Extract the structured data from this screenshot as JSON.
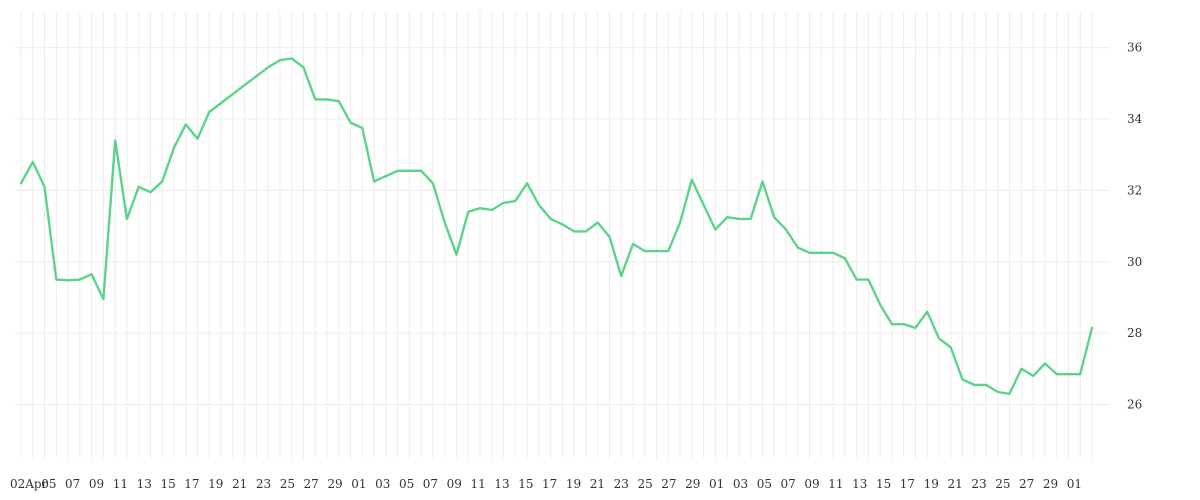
{
  "colors": {
    "line": "#5dd38a",
    "grid": "#ececec",
    "text": "#333333"
  },
  "chart_data": {
    "type": "line",
    "title": "",
    "xlabel": "",
    "ylabel": "",
    "ylim": [
      24.5,
      37
    ],
    "grid": true,
    "y_ticks": [
      26,
      28,
      30,
      32,
      34,
      36
    ],
    "x_tick_labels": [
      "02Apr",
      "05",
      "07",
      "09",
      "11",
      "13",
      "15",
      "17",
      "19",
      "21",
      "23",
      "25",
      "27",
      "29",
      "01",
      "03",
      "05",
      "07",
      "09",
      "11",
      "13",
      "15",
      "17",
      "19",
      "21",
      "23",
      "25",
      "27",
      "29",
      "01",
      "03",
      "05",
      "07",
      "09",
      "11",
      "13",
      "15",
      "17",
      "19",
      "21",
      "23",
      "25",
      "27",
      "29",
      "01"
    ],
    "series": [
      {
        "values": [
          32.2,
          32.8,
          32.1,
          29.5,
          29.48,
          29.5,
          29.65,
          28.95,
          33.4,
          31.2,
          32.1,
          31.95,
          32.25,
          33.2,
          33.85,
          33.45,
          34.2,
          34.45,
          34.7,
          34.95,
          35.2,
          35.45,
          35.65,
          35.7,
          35.45,
          34.55,
          34.55,
          34.5,
          33.9,
          33.75,
          32.25,
          32.4,
          32.55,
          32.55,
          32.55,
          32.2,
          31.1,
          30.2,
          31.4,
          31.5,
          31.45,
          31.65,
          31.7,
          32.2,
          31.6,
          31.2,
          31.05,
          30.85,
          30.85,
          31.1,
          30.7,
          29.6,
          30.5,
          30.3,
          30.3,
          30.3,
          31.1,
          32.3,
          31.6,
          30.9,
          31.25,
          31.2,
          31.2,
          32.25,
          31.25,
          30.9,
          30.4,
          30.25,
          30.25,
          30.25,
          30.1,
          29.5,
          29.5,
          28.8,
          28.25,
          28.25,
          28.15,
          28.6,
          27.85,
          27.6,
          26.7,
          26.55,
          26.55,
          26.35,
          26.3,
          27.0,
          26.8,
          27.15,
          26.85,
          26.85,
          26.85,
          28.15
        ]
      }
    ]
  }
}
